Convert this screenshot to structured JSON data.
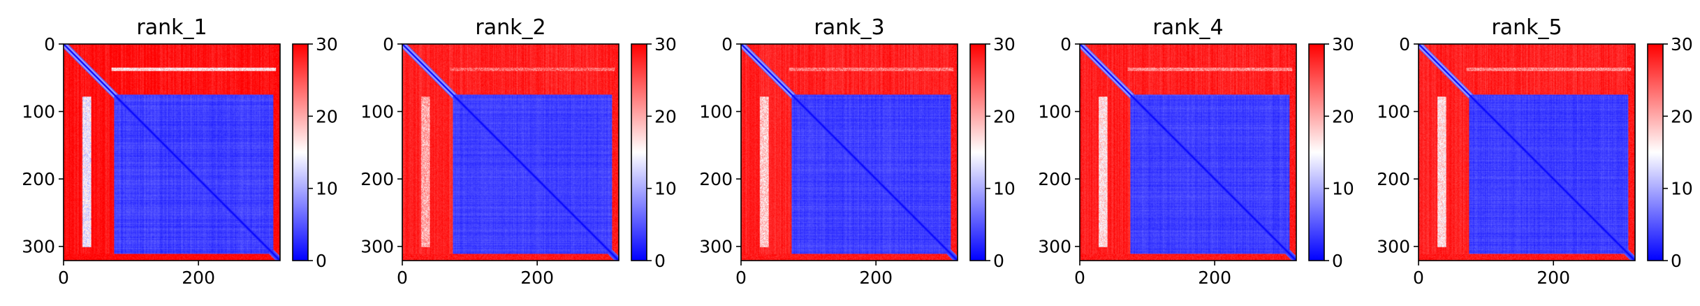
{
  "chart_data": [
    {
      "type": "heatmap",
      "title": "rank_1",
      "x_ticks": [
        0,
        200
      ],
      "y_ticks": [
        0,
        100,
        200,
        300
      ],
      "xlim": [
        0,
        321
      ],
      "ylim": [
        321,
        0
      ],
      "colorbar": {
        "ticks": [
          0,
          10,
          20,
          30
        ],
        "range": [
          0,
          30
        ],
        "colormap": "bwr",
        "colors": [
          "#0000ff",
          "#ffffff",
          "#ff0000"
        ]
      },
      "structure": {
        "length": 321,
        "flexible_region_end": 75,
        "core_start": 75,
        "core_end": 310,
        "core_level": 3,
        "core_level_noise": 1.4,
        "flexible_level": 29,
        "stripe": {
          "start": 28,
          "end": 40,
          "row_start": 78,
          "row_end": 300,
          "level": 14
        },
        "line_row": 37,
        "line_level": 17
      }
    },
    {
      "type": "heatmap",
      "title": "rank_2",
      "x_ticks": [
        0,
        200
      ],
      "y_ticks": [
        0,
        100,
        200,
        300
      ],
      "xlim": [
        0,
        321
      ],
      "ylim": [
        321,
        0
      ],
      "colorbar": {
        "ticks": [
          0,
          10,
          20,
          30
        ],
        "range": [
          0,
          30
        ],
        "colormap": "bwr",
        "colors": [
          "#0000ff",
          "#ffffff",
          "#ff0000"
        ]
      },
      "structure": {
        "length": 321,
        "flexible_region_end": 75,
        "core_start": 75,
        "core_end": 310,
        "core_level": 3,
        "core_level_noise": 1.2,
        "flexible_level": 28,
        "stripe": {
          "start": 28,
          "end": 40,
          "row_start": 78,
          "row_end": 300,
          "level": 20
        },
        "line_row": 37,
        "line_level": 24
      }
    },
    {
      "type": "heatmap",
      "title": "rank_3",
      "x_ticks": [
        0,
        200
      ],
      "y_ticks": [
        0,
        100,
        200,
        300
      ],
      "xlim": [
        0,
        321
      ],
      "ylim": [
        321,
        0
      ],
      "colorbar": {
        "ticks": [
          0,
          10,
          20,
          30
        ],
        "range": [
          0,
          30
        ],
        "colormap": "bwr",
        "colors": [
          "#0000ff",
          "#ffffff",
          "#ff0000"
        ]
      },
      "structure": {
        "length": 321,
        "flexible_region_end": 75,
        "core_start": 75,
        "core_end": 310,
        "core_level": 3,
        "core_level_noise": 1.3,
        "flexible_level": 28,
        "stripe": {
          "start": 28,
          "end": 40,
          "row_start": 78,
          "row_end": 300,
          "level": 18
        },
        "line_row": 37,
        "line_level": 23
      }
    },
    {
      "type": "heatmap",
      "title": "rank_4",
      "x_ticks": [
        0,
        200
      ],
      "y_ticks": [
        0,
        100,
        200,
        300
      ],
      "xlim": [
        0,
        321
      ],
      "ylim": [
        321,
        0
      ],
      "colorbar": {
        "ticks": [
          0,
          10,
          20,
          30
        ],
        "range": [
          0,
          30
        ],
        "colormap": "bwr",
        "colors": [
          "#0000ff",
          "#ffffff",
          "#ff0000"
        ]
      },
      "structure": {
        "length": 321,
        "flexible_region_end": 75,
        "core_start": 75,
        "core_end": 310,
        "core_level": 3,
        "core_level_noise": 1.3,
        "flexible_level": 28,
        "stripe": {
          "start": 28,
          "end": 40,
          "row_start": 78,
          "row_end": 300,
          "level": 17
        },
        "line_row": 37,
        "line_level": 22
      }
    },
    {
      "type": "heatmap",
      "title": "rank_5",
      "x_ticks": [
        0,
        200
      ],
      "y_ticks": [
        0,
        100,
        200,
        300
      ],
      "xlim": [
        0,
        321
      ],
      "ylim": [
        321,
        0
      ],
      "colorbar": {
        "ticks": [
          0,
          10,
          20,
          30
        ],
        "range": [
          0,
          30
        ],
        "colormap": "bwr",
        "colors": [
          "#0000ff",
          "#ffffff",
          "#ff0000"
        ]
      },
      "structure": {
        "length": 321,
        "flexible_region_end": 75,
        "core_start": 75,
        "core_end": 310,
        "core_level": 3,
        "core_level_noise": 1.3,
        "flexible_level": 28,
        "stripe": {
          "start": 28,
          "end": 40,
          "row_start": 78,
          "row_end": 300,
          "level": 17
        },
        "line_row": 37,
        "line_level": 22
      }
    }
  ]
}
